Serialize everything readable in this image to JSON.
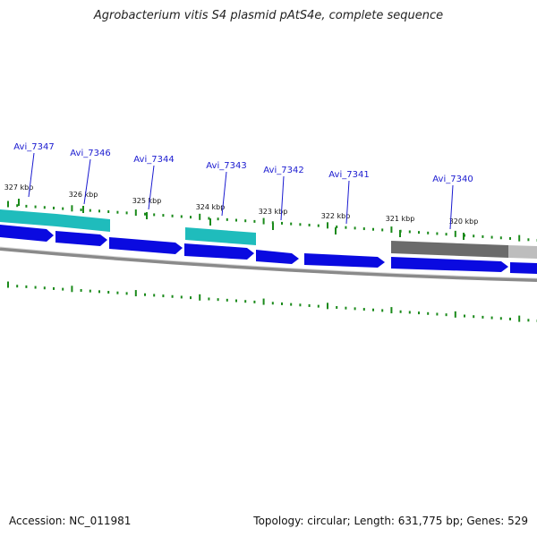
{
  "title": "Agrobacterium vitis S4 plasmid pAtS4e, complete sequence",
  "accession": "Accession: NC_011981",
  "summary": "Topology: circular; Length: 631,775 bp; Genes: 529",
  "colors": {
    "cds_forward": "#0a0ae0",
    "cds_highlight": "#1fbcbc",
    "cds_gray": "#6b6b6b",
    "backbone": "#8a8a8a",
    "tick": "#1a8a1a",
    "label": "#1a1ad0"
  },
  "ticks": [
    {
      "label": "327 kbp"
    },
    {
      "label": "326 kbp"
    },
    {
      "label": "325 kbp"
    },
    {
      "label": "324 kbp"
    },
    {
      "label": "323 kbp"
    },
    {
      "label": "322 kbp"
    },
    {
      "label": "321 kbp"
    },
    {
      "label": "320 kbp"
    }
  ],
  "gene_labels": [
    {
      "name": "Avi_7347"
    },
    {
      "name": "Avi_7346"
    },
    {
      "name": "Avi_7344"
    },
    {
      "name": "Avi_7343"
    },
    {
      "name": "Avi_7342"
    },
    {
      "name": "Avi_7341"
    },
    {
      "name": "Avi_7340"
    }
  ]
}
